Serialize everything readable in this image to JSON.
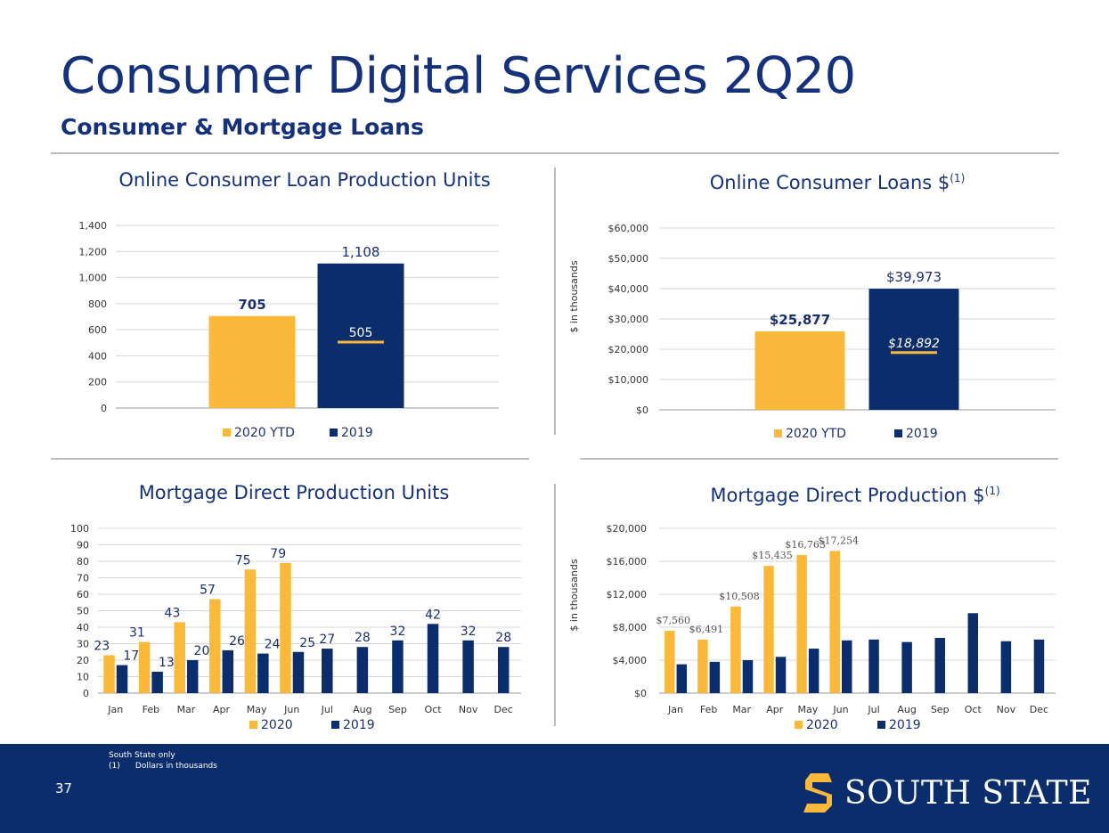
{
  "header": {
    "title": "Consumer Digital Services 2Q20",
    "subtitle": "Consumer & Mortgage Loans"
  },
  "colors": {
    "gold": "#fbb93b",
    "navy": "#0c2d6b",
    "grid": "#d6d6d6",
    "axis": "#333333"
  },
  "footnotes": {
    "line1": "South State only",
    "line2": "(1)      Dollars in thousands"
  },
  "page_number": "37",
  "logo": {
    "text": "SOUTH STATE",
    "icon": "south-state-s-icon"
  },
  "chart_data": [
    {
      "id": "units",
      "type": "bar",
      "title": "Online Consumer Loan Production Units",
      "title_sup": "",
      "ylabel": "",
      "ylim": [
        0,
        1400
      ],
      "yticks": [
        0,
        200,
        400,
        600,
        800,
        1000,
        1200,
        1400
      ],
      "ytick_labels": [
        "0",
        "200",
        "400",
        "600",
        "800",
        "1,000",
        "1,200",
        "1,400"
      ],
      "series": [
        {
          "name": "2020 YTD",
          "values": [
            705
          ],
          "labels": [
            "705"
          ],
          "color": "#fbb93b"
        },
        {
          "name": "2019",
          "values": [
            1108
          ],
          "labels": [
            "1,108"
          ],
          "color": "#0c2d6b"
        }
      ],
      "reference": {
        "value": 505,
        "label": "505"
      },
      "legend": "bottom"
    },
    {
      "id": "dollars",
      "type": "bar",
      "title": "Online Consumer Loans $",
      "title_sup": "(1)",
      "ylabel": "$ in thousands",
      "ylim": [
        0,
        60000
      ],
      "yticks": [
        0,
        10000,
        20000,
        30000,
        40000,
        50000,
        60000
      ],
      "ytick_labels": [
        "$0",
        "$10,000",
        "$20,000",
        "$30,000",
        "$40,000",
        "$50,000",
        "$60,000"
      ],
      "series": [
        {
          "name": "2020 YTD",
          "values": [
            25877
          ],
          "labels": [
            "$25,877"
          ],
          "color": "#fbb93b"
        },
        {
          "name": "2019",
          "values": [
            39973
          ],
          "labels": [
            "$39,973"
          ],
          "color": "#0c2d6b"
        }
      ],
      "reference": {
        "value": 18892,
        "label": "$18,892"
      },
      "legend": "bottom"
    },
    {
      "id": "mort_units",
      "type": "bar",
      "title": "Mortgage Direct Production Units",
      "title_sup": "",
      "ylabel": "",
      "ylim": [
        0,
        100
      ],
      "yticks": [
        0,
        10,
        20,
        30,
        40,
        50,
        60,
        70,
        80,
        90,
        100
      ],
      "ytick_labels": [
        "0",
        "10",
        "20",
        "30",
        "40",
        "50",
        "60",
        "70",
        "80",
        "90",
        "100"
      ],
      "categories": [
        "Jan",
        "Feb",
        "Mar",
        "Apr",
        "May",
        "Jun",
        "Jul",
        "Aug",
        "Sep",
        "Oct",
        "Nov",
        "Dec"
      ],
      "series": [
        {
          "name": "2020",
          "values": [
            23,
            31,
            43,
            57,
            75,
            79,
            null,
            null,
            null,
            null,
            null,
            null
          ],
          "labels": [
            "23",
            "31",
            "43",
            "57",
            "75",
            "79",
            "",
            "",
            "",
            "",
            "",
            ""
          ],
          "color": "#fbb93b"
        },
        {
          "name": "2019",
          "values": [
            17,
            13,
            20,
            26,
            24,
            25,
            27,
            28,
            32,
            42,
            32,
            28
          ],
          "labels": [
            "17",
            "13",
            "20",
            "26",
            "24",
            "25",
            "27",
            "28",
            "32",
            "42",
            "32",
            "28"
          ],
          "color": "#0c2d6b"
        }
      ],
      "legend": "bottom"
    },
    {
      "id": "mort_dollars",
      "type": "bar",
      "title": "Mortgage Direct Production $",
      "title_sup": "(1)",
      "ylabel": "$ in thousands",
      "ylim": [
        0,
        20000
      ],
      "yticks": [
        0,
        4000,
        8000,
        12000,
        16000,
        20000
      ],
      "ytick_labels": [
        "$0",
        "$4,000",
        "$8,000",
        "$12,000",
        "$16,000",
        "$20,000"
      ],
      "categories": [
        "Jan",
        "Feb",
        "Mar",
        "Apr",
        "May",
        "Jun",
        "Jul",
        "Aug",
        "Sep",
        "Oct",
        "Nov",
        "Dec"
      ],
      "series": [
        {
          "name": "2020",
          "values": [
            7560,
            6491,
            10508,
            15435,
            16763,
            17254,
            null,
            null,
            null,
            null,
            null,
            null
          ],
          "labels": [
            "$7,560",
            "$6,491",
            "$10,508",
            "$15,435",
            "$16,763",
            "$17,254",
            "",
            "",
            "",
            "",
            "",
            ""
          ],
          "color": "#fbb93b"
        },
        {
          "name": "2019",
          "values": [
            3500,
            3800,
            4000,
            4400,
            5400,
            6400,
            6500,
            6200,
            6700,
            9700,
            6300,
            6500
          ],
          "labels": [
            "",
            "",
            "",
            "",
            "",
            "",
            "",
            "",
            "",
            "",
            "",
            ""
          ],
          "color": "#0c2d6b"
        }
      ],
      "legend": "bottom"
    }
  ]
}
